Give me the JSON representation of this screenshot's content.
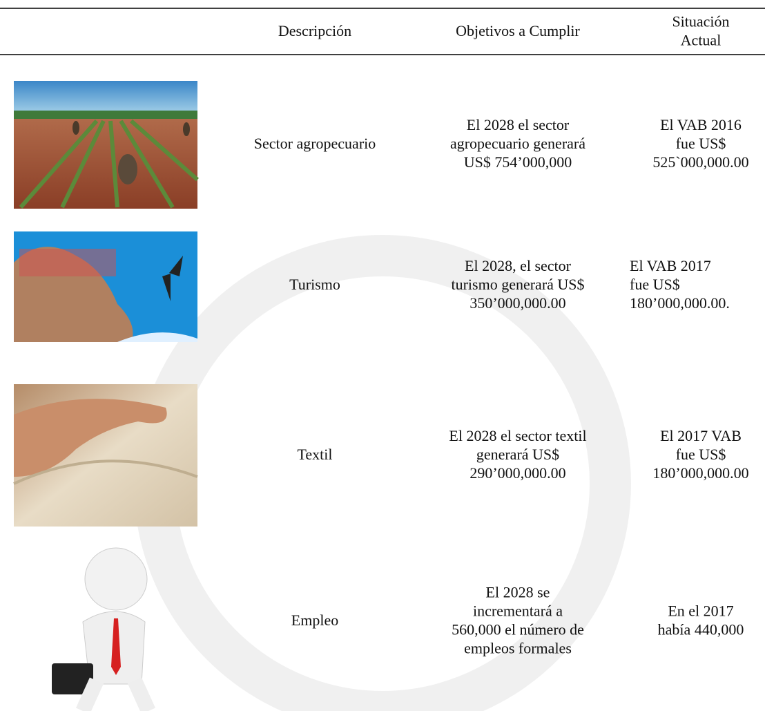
{
  "table": {
    "header": {
      "description": "Descripción",
      "objectives": "Objetivos a Cumplir",
      "status": [
        "Situación",
        "Actual"
      ]
    },
    "rows": [
      {
        "description": "Sector agropecuario",
        "objectives": [
          "El 2028 el sector",
          "agropecuario generará",
          "US$ 754’000,000"
        ],
        "status": [
          "El VAB 2016",
          "fue US$",
          "525`000,000.00"
        ]
      },
      {
        "description": "Turismo",
        "objectives": [
          "El 2028, el sector",
          "turismo generará US$",
          "350’000,000.00"
        ],
        "status": [
          "El VAB 2017",
          "fue US$",
          "180’000,000.00."
        ]
      },
      {
        "description": "Textil",
        "objectives": [
          "El 2028 el sector textil",
          "generará US$",
          "290’000,000.00"
        ],
        "status": [
          "El 2017 VAB",
          "fue US$",
          "180’000,000.00"
        ]
      },
      {
        "description": "Empleo",
        "objectives": [
          "El 2028 se",
          "incrementará a",
          "560,000 el número de",
          "empleos formales"
        ],
        "status": [
          "En el 2017",
          "había 440,000"
        ]
      }
    ]
  }
}
